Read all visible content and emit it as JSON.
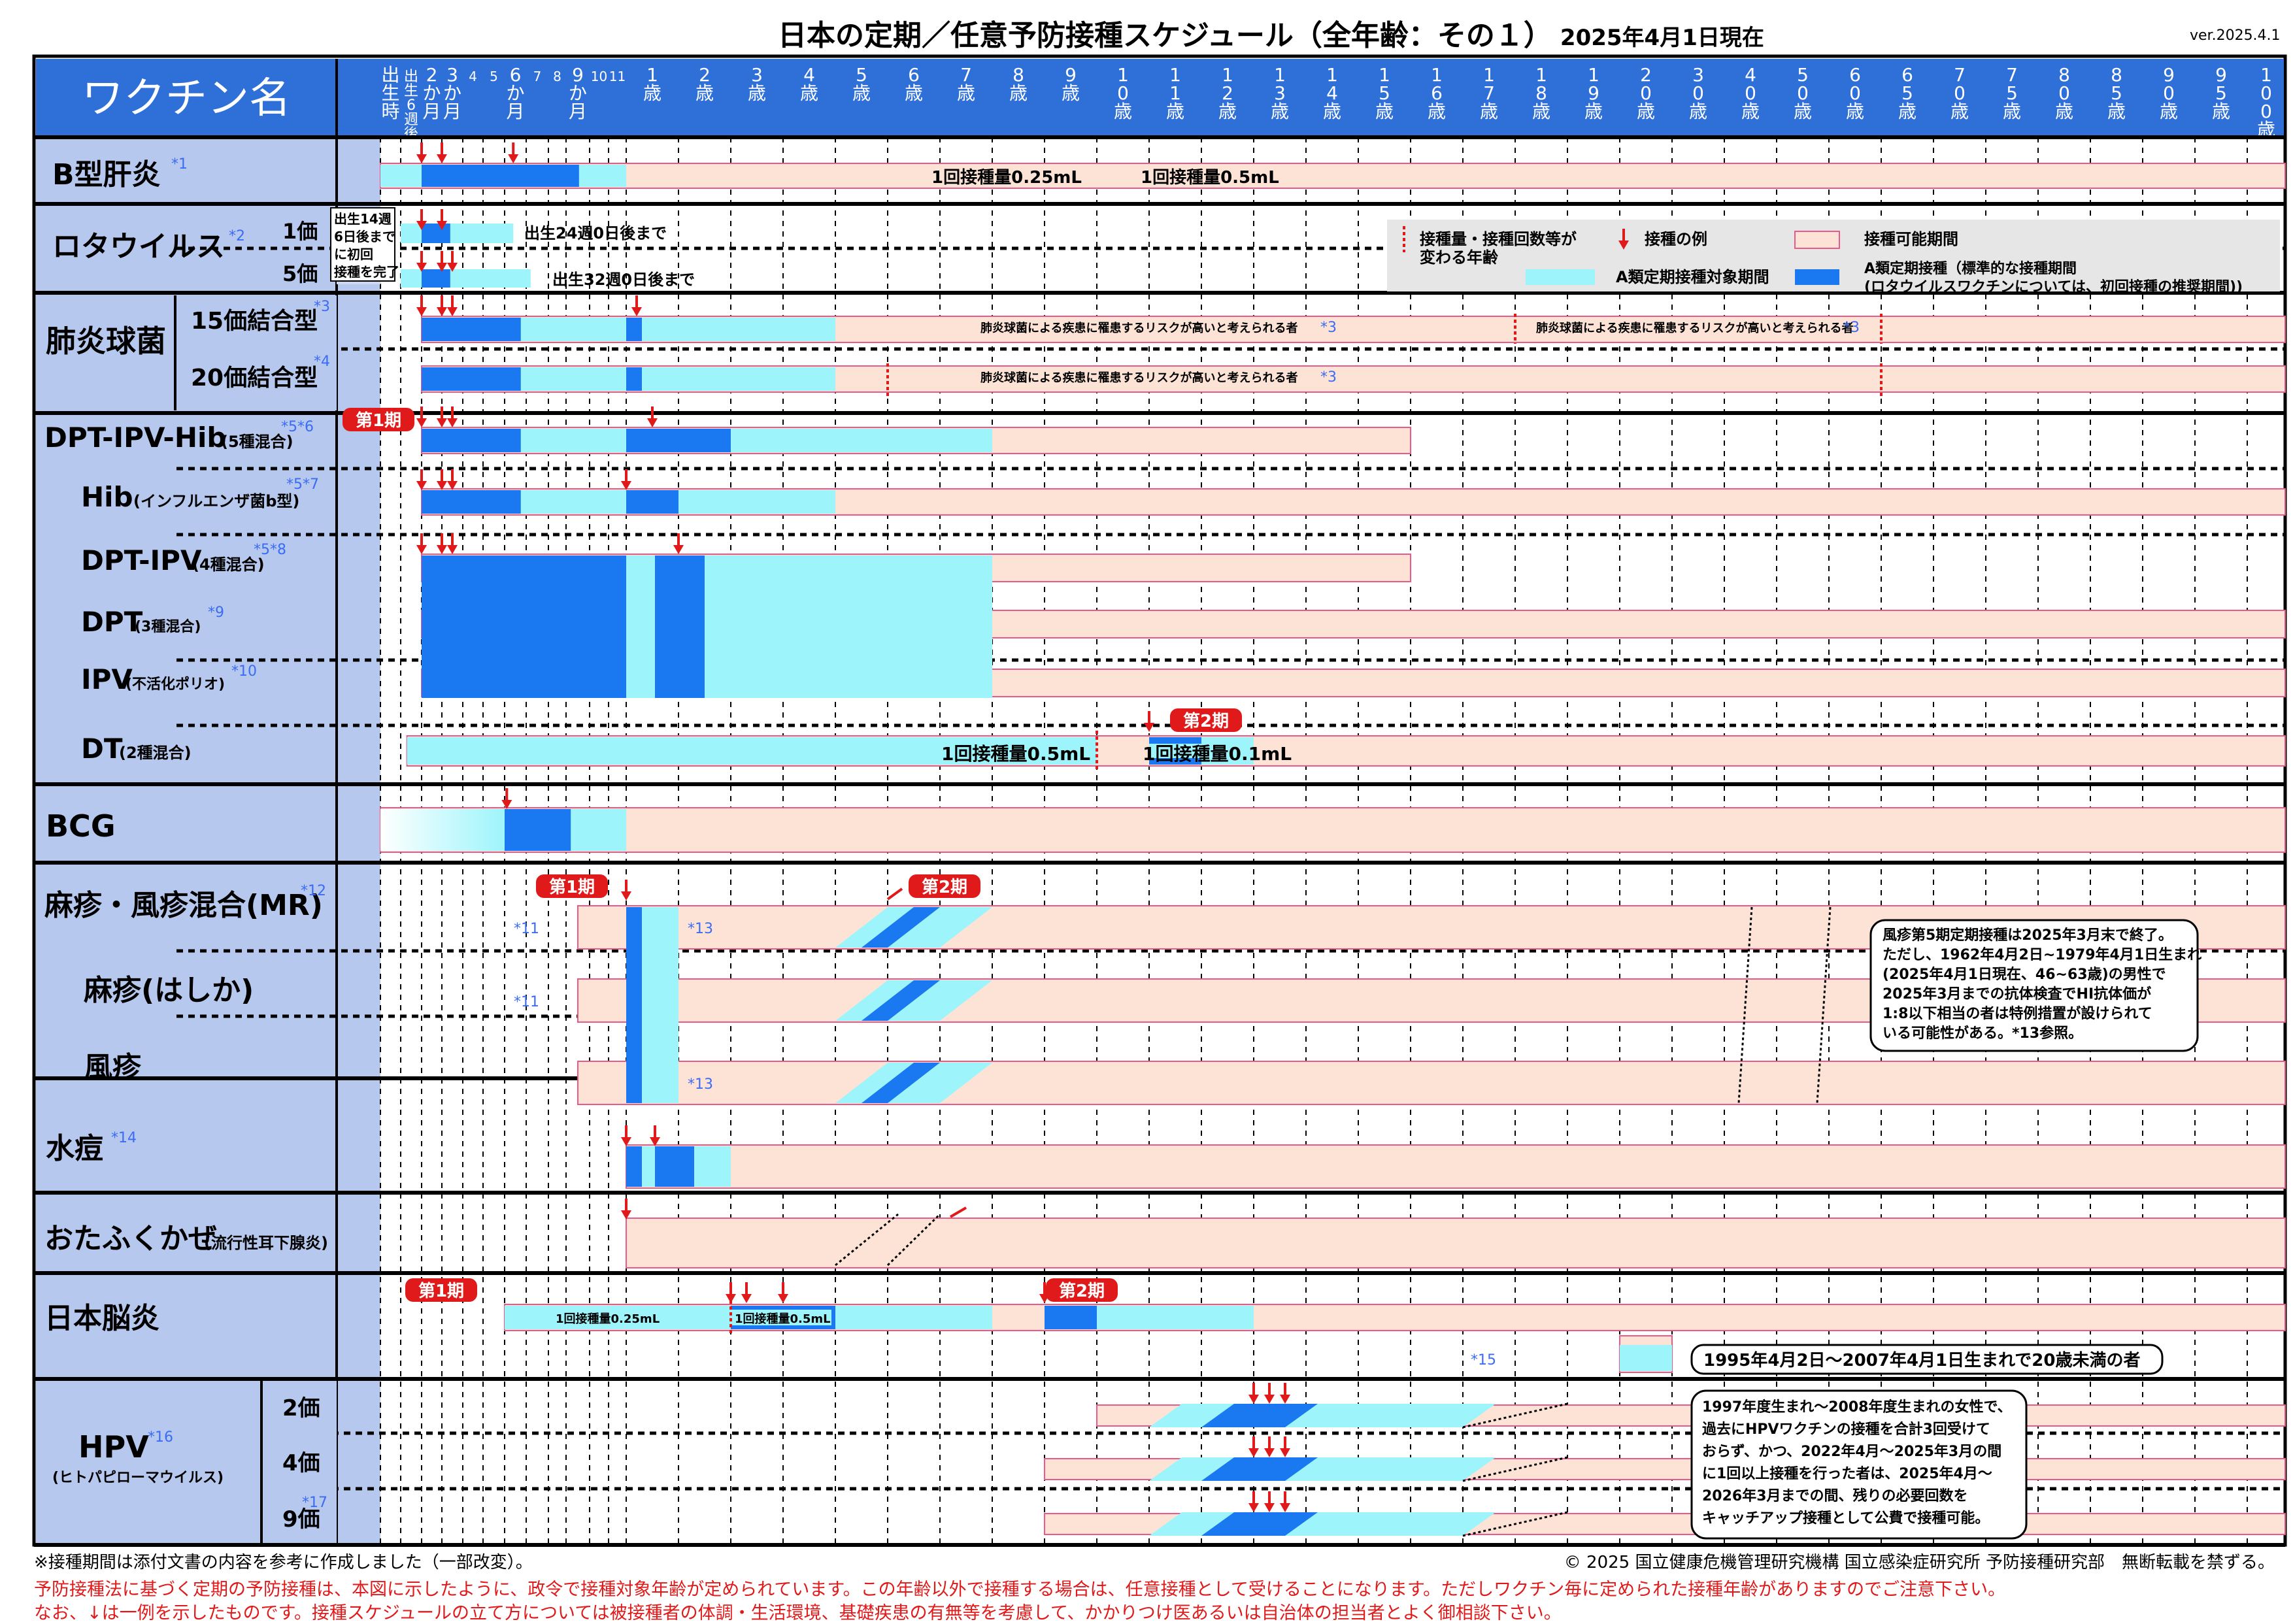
{
  "title": "日本の定期／任意予防接種スケジュール（全年齢：その１）",
  "date": "2025年4月1日現在",
  "version": "ver.2025.4.1",
  "header_label": "ワクチン名",
  "columns": [
    {
      "label": "出生時",
      "kind": "v"
    },
    {
      "label": "出生6週後",
      "kind": "v"
    },
    {
      "label": "2か月",
      "kind": "v"
    },
    {
      "label": "3か月",
      "kind": "v"
    },
    {
      "label": "4",
      "kind": "n"
    },
    {
      "label": "5",
      "kind": "n"
    },
    {
      "label": "6か月",
      "kind": "v"
    },
    {
      "label": "7",
      "kind": "n"
    },
    {
      "label": "8",
      "kind": "n"
    },
    {
      "label": "9か月",
      "kind": "v"
    },
    {
      "label": "10",
      "kind": "n"
    },
    {
      "label": "11",
      "kind": "n"
    },
    {
      "label": "1歳",
      "kind": "y"
    },
    {
      "label": "2歳",
      "kind": "y"
    },
    {
      "label": "3歳",
      "kind": "y"
    },
    {
      "label": "4歳",
      "kind": "y"
    },
    {
      "label": "5歳",
      "kind": "y"
    },
    {
      "label": "6歳",
      "kind": "y"
    },
    {
      "label": "7歳",
      "kind": "y"
    },
    {
      "label": "8歳",
      "kind": "y"
    },
    {
      "label": "9歳",
      "kind": "y"
    },
    {
      "label": "10歳",
      "kind": "y"
    },
    {
      "label": "11歳",
      "kind": "y"
    },
    {
      "label": "12歳",
      "kind": "y"
    },
    {
      "label": "13歳",
      "kind": "y"
    },
    {
      "label": "14歳",
      "kind": "y"
    },
    {
      "label": "15歳",
      "kind": "y"
    },
    {
      "label": "16歳",
      "kind": "y"
    },
    {
      "label": "17歳",
      "kind": "y"
    },
    {
      "label": "18歳",
      "kind": "y"
    },
    {
      "label": "19歳",
      "kind": "y"
    },
    {
      "label": "20歳",
      "kind": "y"
    },
    {
      "label": "30歳",
      "kind": "y"
    },
    {
      "label": "40歳",
      "kind": "y"
    },
    {
      "label": "50歳",
      "kind": "y"
    },
    {
      "label": "60歳",
      "kind": "y"
    },
    {
      "label": "65歳",
      "kind": "y"
    },
    {
      "label": "70歳",
      "kind": "y"
    },
    {
      "label": "75歳",
      "kind": "y"
    },
    {
      "label": "80歳",
      "kind": "y"
    },
    {
      "label": "85歳",
      "kind": "y"
    },
    {
      "label": "90歳",
      "kind": "y"
    },
    {
      "label": "95歳",
      "kind": "y"
    },
    {
      "label": "100歳〜",
      "kind": "y"
    }
  ],
  "vaccines": {
    "hepb": {
      "name": "B型肝炎",
      "note": "*1"
    },
    "rota": {
      "name": "ロタウイルス",
      "note": "*2",
      "sub1": "1価",
      "sub2": "5価",
      "box": "出生14週\n6日後まで\nに初回\n接種を完了",
      "end1": "出生24週0日後まで",
      "end2": "出生32週0日後まで"
    },
    "pneumo": {
      "name": "肺炎球菌",
      "sub1": "15価結合型",
      "note1": "*3",
      "sub2": "20価結合型",
      "note2": "*4"
    },
    "dptipvhib": {
      "name": "DPT-IPV-Hib",
      "small": "(5種混合)",
      "note": "*5*6"
    },
    "hib": {
      "name": "Hib",
      "small": "(インフルエンザ菌b型)",
      "note": "*5*7"
    },
    "dptipv": {
      "name": "DPT-IPV",
      "small": "(4種混合)",
      "note": "*5*8"
    },
    "dpt": {
      "name": "DPT",
      "small": "(3種混合)",
      "note": "*9"
    },
    "ipv": {
      "name": "IPV",
      "small": "(不活化ポリオ)",
      "note": "*10"
    },
    "dt": {
      "name": "DT",
      "small": "(2種混合)"
    },
    "bcg": {
      "name": "BCG"
    },
    "mr": {
      "name": "麻疹・風疹混合(MR)",
      "note": "*12"
    },
    "measles": {
      "name": "麻疹(はしか)"
    },
    "rubella": {
      "name": "風疹"
    },
    "varicella": {
      "name": "水痘",
      "note": "*14"
    },
    "mumps": {
      "name": "おたふくかぜ",
      "small": "(流行性耳下腺炎)"
    },
    "je": {
      "name": "日本脳炎"
    },
    "hpv": {
      "name": "HPV",
      "note": "*16",
      "small": "(ヒトパピローマウイルス)",
      "sub1": "2価",
      "sub2": "4価",
      "sub3": "9価",
      "note3": "*17"
    }
  },
  "labels": {
    "dose025": "1回接種量0.25mL",
    "dose05": "1回接種量0.5mL",
    "dose01": "1回接種量0.1mL",
    "phase1": "第1期",
    "phase2": "第2期",
    "pneumo_risk": "肺炎球菌による疾患に罹患するリスクが高いと考えられる者",
    "note3": "*3",
    "note11": "*11",
    "note13": "*13",
    "note15": "*15",
    "je_callout": "1995年4月2日～2007年4月1日生まれで20歳未満の者",
    "rubella_callout": "風疹第5期定期接種は2025年3月末で終了。\nただし、1962年4月2日~1979年4月1日生まれ\n(2025年4月1日現在、46~63歳)の男性で\n2025年3月までの抗体検査でHI抗体価が\n1:8以下相当の者は特例措置が設けられて\nいる可能性がある。*13参照。",
    "hpv_callout": "1997年度生まれ～2008年度生まれの女性で、\n過去にHPVワクチンの接種を合計3回受けて\nおらず、かつ、2022年4月～2025年3月の間\nに1回以上接種を行った者は、2025年4月～\n2026年3月までの間、残りの必要回数を\nキャッチアップ接種として公費で接種可能。"
  },
  "legend": {
    "dose_change": "接種量・接種回数等が\n変わる年齢",
    "example": "接種の例",
    "possible": "接種可能期間",
    "type_a": "A類定期接種対象期間",
    "standard": "A類定期接種（標準的な接種期間\n(ロタウイルスワクチンについては、初回接種の推奨期間))"
  },
  "colors": {
    "header": "#2f6fd8",
    "name_bg": "#b6c8ee",
    "sub_bg": "#ccd8f2",
    "possible": "#fde3d6",
    "possible_border": "#e75a8a",
    "typea": "#9df5fb",
    "standard": "#1a78f0",
    "arrow": "#e01a1a",
    "note": "#3a6cf5"
  },
  "footer": {
    "footnote": "※接種期間は添付文書の内容を参考に作成しました（一部改変）。",
    "copyright": "© 2025 国立健康危機管理研究機構 国立感染症研究所 予防接種研究部　無断転載を禁ずる。",
    "note1": "予防接種法に基づく定期の予防接種は、本図に示したように、政令で接種対象年齢が定められています。この年齢以外で接種する場合は、任意接種として受けることになります。ただしワクチン毎に定められた接種年齢がありますのでご注意下さい。",
    "note2": "なお、↓は一例を示したものです。接種スケジュールの立て方については被接種者の体調・生活環境、基礎疾患の有無等を考慮して、かかりつけ医あるいは自治体の担当者とよく御相談下さい。"
  }
}
